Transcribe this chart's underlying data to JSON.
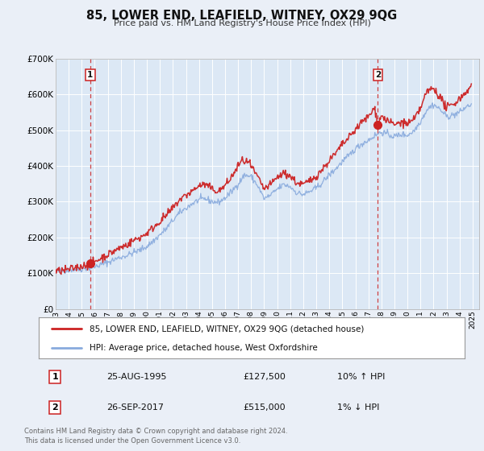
{
  "title": "85, LOWER END, LEAFIELD, WITNEY, OX29 9QG",
  "subtitle": "Price paid vs. HM Land Registry's House Price Index (HPI)",
  "bg_color": "#eaeff7",
  "plot_bg_color": "#dce8f5",
  "grid_color": "#ffffff",
  "red_line_color": "#cc2222",
  "blue_line_color": "#88aadd",
  "ylim": [
    0,
    700000
  ],
  "yticks": [
    0,
    100000,
    200000,
    300000,
    400000,
    500000,
    600000,
    700000
  ],
  "ytick_labels": [
    "£0",
    "£100K",
    "£200K",
    "£300K",
    "£400K",
    "£500K",
    "£600K",
    "£700K"
  ],
  "xlim_start": 1993.0,
  "xlim_end": 2025.5,
  "xtick_years": [
    1993,
    1994,
    1995,
    1996,
    1997,
    1998,
    1999,
    2000,
    2001,
    2002,
    2003,
    2004,
    2005,
    2006,
    2007,
    2008,
    2009,
    2010,
    2011,
    2012,
    2013,
    2014,
    2015,
    2016,
    2017,
    2018,
    2019,
    2020,
    2021,
    2022,
    2023,
    2024,
    2025
  ],
  "sale1_x": 1995.65,
  "sale1_y": 127500,
  "sale1_label": "1",
  "sale2_x": 2017.73,
  "sale2_y": 515000,
  "sale2_label": "2",
  "vline1_x": 1995.65,
  "vline2_x": 2017.73,
  "legend_line1": "85, LOWER END, LEAFIELD, WITNEY, OX29 9QG (detached house)",
  "legend_line2": "HPI: Average price, detached house, West Oxfordshire",
  "table_row1_num": "1",
  "table_row1_date": "25-AUG-1995",
  "table_row1_price": "£127,500",
  "table_row1_hpi": "10% ↑ HPI",
  "table_row2_num": "2",
  "table_row2_date": "26-SEP-2017",
  "table_row2_price": "£515,000",
  "table_row2_hpi": "1% ↓ HPI",
  "footer": "Contains HM Land Registry data © Crown copyright and database right 2024.\nThis data is licensed under the Open Government Licence v3.0."
}
